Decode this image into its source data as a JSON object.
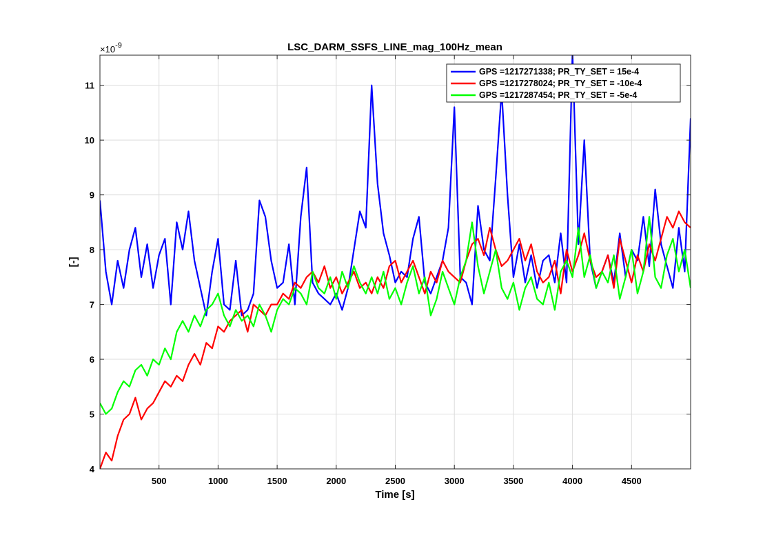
{
  "chart_data": {
    "type": "line",
    "title": "LSC_DARM_SSFS_LINE_mag_100Hz_mean",
    "xlabel": "Time [s]",
    "ylabel": "[-]",
    "y_exponent_label": "×10",
    "y_exponent_power": "-9",
    "xlim": [
      0,
      5000
    ],
    "ylim": [
      4.0,
      11.55
    ],
    "xticks": [
      500,
      1000,
      1500,
      2000,
      2500,
      3000,
      3500,
      4000,
      4500
    ],
    "yticks": [
      4,
      5,
      6,
      7,
      8,
      9,
      10,
      11
    ],
    "grid": true,
    "legend_position": "top-right",
    "series": [
      {
        "name": "GPS =1217271338; PR_TY_SET = 15e-4",
        "color": "#0000ff",
        "x": [
          0,
          50,
          100,
          150,
          200,
          250,
          300,
          350,
          400,
          450,
          500,
          550,
          600,
          650,
          700,
          750,
          800,
          850,
          900,
          950,
          1000,
          1050,
          1100,
          1150,
          1200,
          1250,
          1300,
          1350,
          1400,
          1450,
          1500,
          1550,
          1600,
          1650,
          1700,
          1750,
          1800,
          1850,
          1900,
          1950,
          2000,
          2050,
          2100,
          2150,
          2200,
          2250,
          2300,
          2350,
          2400,
          2450,
          2500,
          2550,
          2600,
          2650,
          2700,
          2750,
          2800,
          2850,
          2900,
          2950,
          3000,
          3050,
          3100,
          3150,
          3200,
          3250,
          3300,
          3350,
          3400,
          3450,
          3500,
          3550,
          3600,
          3650,
          3700,
          3750,
          3800,
          3850,
          3900,
          3950,
          4000,
          4050,
          4100,
          4150,
          4200,
          4250,
          4300,
          4350,
          4400,
          4450,
          4500,
          4550,
          4600,
          4650,
          4700,
          4750,
          4800,
          4850,
          4900,
          4950,
          5000
        ],
        "values": [
          8.9,
          7.6,
          7.0,
          7.8,
          7.3,
          8.0,
          8.4,
          7.5,
          8.1,
          7.3,
          7.9,
          8.2,
          7.0,
          8.5,
          8.0,
          8.7,
          7.8,
          7.3,
          6.8,
          7.6,
          8.2,
          7.0,
          6.9,
          7.8,
          6.8,
          6.9,
          7.2,
          8.9,
          8.6,
          7.8,
          7.3,
          7.4,
          8.1,
          7.0,
          8.6,
          9.5,
          7.4,
          7.2,
          7.1,
          7.0,
          7.2,
          6.9,
          7.3,
          8.0,
          8.7,
          8.4,
          11.0,
          9.2,
          8.3,
          7.9,
          7.4,
          7.6,
          7.5,
          8.2,
          8.6,
          7.4,
          7.2,
          7.5,
          7.8,
          8.4,
          10.6,
          7.5,
          7.4,
          7.0,
          8.8,
          8.0,
          7.8,
          9.3,
          10.9,
          9.0,
          7.5,
          8.1,
          7.4,
          7.9,
          7.3,
          7.8,
          7.9,
          7.4,
          8.3,
          7.4,
          11.6,
          8.1,
          10.0,
          7.8,
          7.3,
          7.6,
          7.9,
          7.4,
          8.3,
          7.5,
          8.0,
          7.8,
          8.6,
          7.7,
          9.1,
          8.1,
          7.7,
          7.3,
          8.4,
          7.6,
          10.4
        ]
      },
      {
        "name": "GPS =1217278024; PR_TY_SET = -10e-4",
        "color": "#ff0000",
        "x": [
          0,
          50,
          100,
          150,
          200,
          250,
          300,
          350,
          400,
          450,
          500,
          550,
          600,
          650,
          700,
          750,
          800,
          850,
          900,
          950,
          1000,
          1050,
          1100,
          1150,
          1200,
          1250,
          1300,
          1350,
          1400,
          1450,
          1500,
          1550,
          1600,
          1650,
          1700,
          1750,
          1800,
          1850,
          1900,
          1950,
          2000,
          2050,
          2100,
          2150,
          2200,
          2250,
          2300,
          2350,
          2400,
          2450,
          2500,
          2550,
          2600,
          2650,
          2700,
          2750,
          2800,
          2850,
          2900,
          2950,
          3000,
          3050,
          3100,
          3150,
          3200,
          3250,
          3300,
          3350,
          3400,
          3450,
          3500,
          3550,
          3600,
          3650,
          3700,
          3750,
          3800,
          3850,
          3900,
          3950,
          4000,
          4050,
          4100,
          4150,
          4200,
          4250,
          4300,
          4350,
          4400,
          4450,
          4500,
          4550,
          4600,
          4650,
          4700,
          4750,
          4800,
          4850,
          4900,
          4950,
          5000
        ],
        "values": [
          4.0,
          4.3,
          4.15,
          4.6,
          4.9,
          5.0,
          5.3,
          4.9,
          5.1,
          5.2,
          5.4,
          5.6,
          5.5,
          5.7,
          5.6,
          5.9,
          6.1,
          5.9,
          6.3,
          6.2,
          6.6,
          6.5,
          6.7,
          6.8,
          6.9,
          6.5,
          7.0,
          6.9,
          6.8,
          7.0,
          7.0,
          7.2,
          7.1,
          7.4,
          7.3,
          7.5,
          7.6,
          7.4,
          7.7,
          7.3,
          7.5,
          7.2,
          7.4,
          7.6,
          7.3,
          7.4,
          7.2,
          7.5,
          7.3,
          7.7,
          7.8,
          7.4,
          7.6,
          7.8,
          7.5,
          7.2,
          7.6,
          7.4,
          7.8,
          7.6,
          7.5,
          7.4,
          7.8,
          8.1,
          8.2,
          7.9,
          8.4,
          8.0,
          7.7,
          7.8,
          8.0,
          8.2,
          7.8,
          8.1,
          7.6,
          7.4,
          7.5,
          7.8,
          7.2,
          8.0,
          7.6,
          7.9,
          8.3,
          7.8,
          7.5,
          7.6,
          7.9,
          7.3,
          8.2,
          7.8,
          7.4,
          7.9,
          7.6,
          8.1,
          7.8,
          8.2,
          8.6,
          8.4,
          8.7,
          8.5,
          8.4
        ]
      },
      {
        "name": "GPS =1217287454; PR_TY_SET = -5e-4",
        "color": "#00ff00",
        "x": [
          0,
          50,
          100,
          150,
          200,
          250,
          300,
          350,
          400,
          450,
          500,
          550,
          600,
          650,
          700,
          750,
          800,
          850,
          900,
          950,
          1000,
          1050,
          1100,
          1150,
          1200,
          1250,
          1300,
          1350,
          1400,
          1450,
          1500,
          1550,
          1600,
          1650,
          1700,
          1750,
          1800,
          1850,
          1900,
          1950,
          2000,
          2050,
          2100,
          2150,
          2200,
          2250,
          2300,
          2350,
          2400,
          2450,
          2500,
          2550,
          2600,
          2650,
          2700,
          2750,
          2800,
          2850,
          2900,
          2950,
          3000,
          3050,
          3100,
          3150,
          3200,
          3250,
          3300,
          3350,
          3400,
          3450,
          3500,
          3550,
          3600,
          3650,
          3700,
          3750,
          3800,
          3850,
          3900,
          3950,
          4000,
          4050,
          4100,
          4150,
          4200,
          4250,
          4300,
          4350,
          4400,
          4450,
          4500,
          4550,
          4600,
          4650,
          4700,
          4750,
          4800,
          4850,
          4900,
          4950,
          5000
        ],
        "values": [
          5.2,
          5.0,
          5.1,
          5.4,
          5.6,
          5.5,
          5.8,
          5.9,
          5.7,
          6.0,
          5.9,
          6.2,
          6.0,
          6.5,
          6.7,
          6.5,
          6.8,
          6.6,
          6.9,
          7.0,
          7.2,
          6.8,
          6.6,
          6.9,
          6.7,
          6.8,
          6.6,
          7.0,
          6.8,
          6.5,
          6.9,
          7.1,
          7.0,
          7.3,
          7.2,
          7.0,
          7.6,
          7.3,
          7.2,
          7.5,
          7.1,
          7.6,
          7.3,
          7.7,
          7.4,
          7.2,
          7.5,
          7.2,
          7.6,
          7.1,
          7.3,
          7.0,
          7.4,
          7.7,
          7.2,
          7.5,
          6.8,
          7.1,
          7.6,
          7.3,
          7.0,
          7.5,
          7.8,
          8.5,
          7.7,
          7.2,
          7.6,
          8.0,
          7.3,
          7.1,
          7.4,
          6.9,
          7.3,
          7.5,
          7.1,
          7.0,
          7.4,
          6.9,
          7.6,
          7.8,
          7.5,
          8.4,
          7.5,
          7.9,
          7.3,
          7.6,
          7.4,
          7.9,
          7.1,
          7.5,
          8.0,
          7.2,
          7.6,
          8.6,
          7.5,
          7.3,
          7.9,
          8.2,
          7.6,
          8.0,
          7.3
        ]
      }
    ]
  }
}
